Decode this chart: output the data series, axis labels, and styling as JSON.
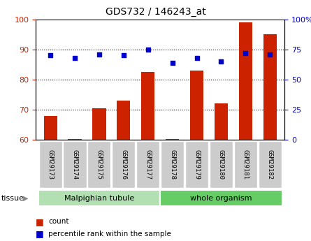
{
  "title": "GDS732 / 146243_at",
  "categories": [
    "GSM29173",
    "GSM29174",
    "GSM29175",
    "GSM29176",
    "GSM29177",
    "GSM29178",
    "GSM29179",
    "GSM29180",
    "GSM29181",
    "GSM29182"
  ],
  "bar_values": [
    68,
    60.2,
    70.5,
    73,
    82.5,
    60.2,
    83,
    72,
    99,
    95
  ],
  "percentile_values": [
    70,
    68,
    71,
    70,
    75,
    64,
    68,
    65,
    72,
    71
  ],
  "bar_color": "#cc2200",
  "dot_color": "#0000cc",
  "ylim_left": [
    60,
    100
  ],
  "ylim_right": [
    0,
    100
  ],
  "yticks_left": [
    60,
    70,
    80,
    90,
    100
  ],
  "yticks_right": [
    0,
    25,
    50,
    75,
    100
  ],
  "ytick_labels_right": [
    "0",
    "25",
    "50",
    "75",
    "100%"
  ],
  "dotted_lines": [
    70,
    80,
    90
  ],
  "tissue_groups": [
    {
      "label": "Malpighian tubule",
      "start": 0,
      "end": 5,
      "color": "#b2e0b2"
    },
    {
      "label": "whole organism",
      "start": 5,
      "end": 10,
      "color": "#66cc66"
    }
  ],
  "legend_items": [
    {
      "label": "count",
      "color": "#cc2200"
    },
    {
      "label": "percentile rank within the sample",
      "color": "#0000cc"
    }
  ],
  "tissue_label": "tissue",
  "tick_label_color_left": "#cc2200",
  "tick_label_color_right": "#0000cc",
  "xticklabel_bg": "#cccccc"
}
